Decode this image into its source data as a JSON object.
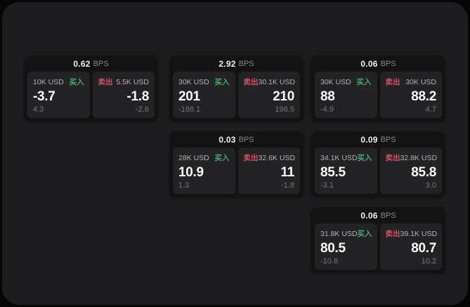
{
  "page": {
    "background": "#060607",
    "surface_color": "#1c1c1e",
    "card_color": "#131314",
    "panel_color": "#232325",
    "buy_color": "#43aa72",
    "sell_color": "#d44f62"
  },
  "labels": {
    "bps": "BPS",
    "buy": "买入",
    "sell": "卖出"
  },
  "cards": [
    {
      "bps": "0.62",
      "buy": {
        "notional": "10K USD",
        "price": "-3.7",
        "delta": "4.3"
      },
      "sell": {
        "notional": "5.5K USD",
        "price": "-1.8",
        "delta": "-2.6"
      }
    },
    {
      "bps": "2.92",
      "buy": {
        "notional": "30K USD",
        "price": "201",
        "delta": "-188.1"
      },
      "sell": {
        "notional": "30.1K USD",
        "price": "210",
        "delta": "196.5"
      }
    },
    {
      "bps": "0.06",
      "buy": {
        "notional": "30K USD",
        "price": "88",
        "delta": "-4.9"
      },
      "sell": {
        "notional": "30K USD",
        "price": "88.2",
        "delta": "4.7"
      }
    },
    {
      "bps": "0.03",
      "buy": {
        "notional": "28K USD",
        "price": "10.9",
        "delta": "1.3"
      },
      "sell": {
        "notional": "32.6K USD",
        "price": "11",
        "delta": "-1.8"
      }
    },
    {
      "bps": "0.09",
      "buy": {
        "notional": "34.1K USD",
        "price": "85.5",
        "delta": "-3.1"
      },
      "sell": {
        "notional": "32.8K USD",
        "price": "85.8",
        "delta": "3.0"
      }
    },
    {
      "bps": "0.06",
      "buy": {
        "notional": "31.8K USD",
        "price": "80.5",
        "delta": "-10.8"
      },
      "sell": {
        "notional": "39.1K USD",
        "price": "80.7",
        "delta": "10.2"
      }
    }
  ]
}
